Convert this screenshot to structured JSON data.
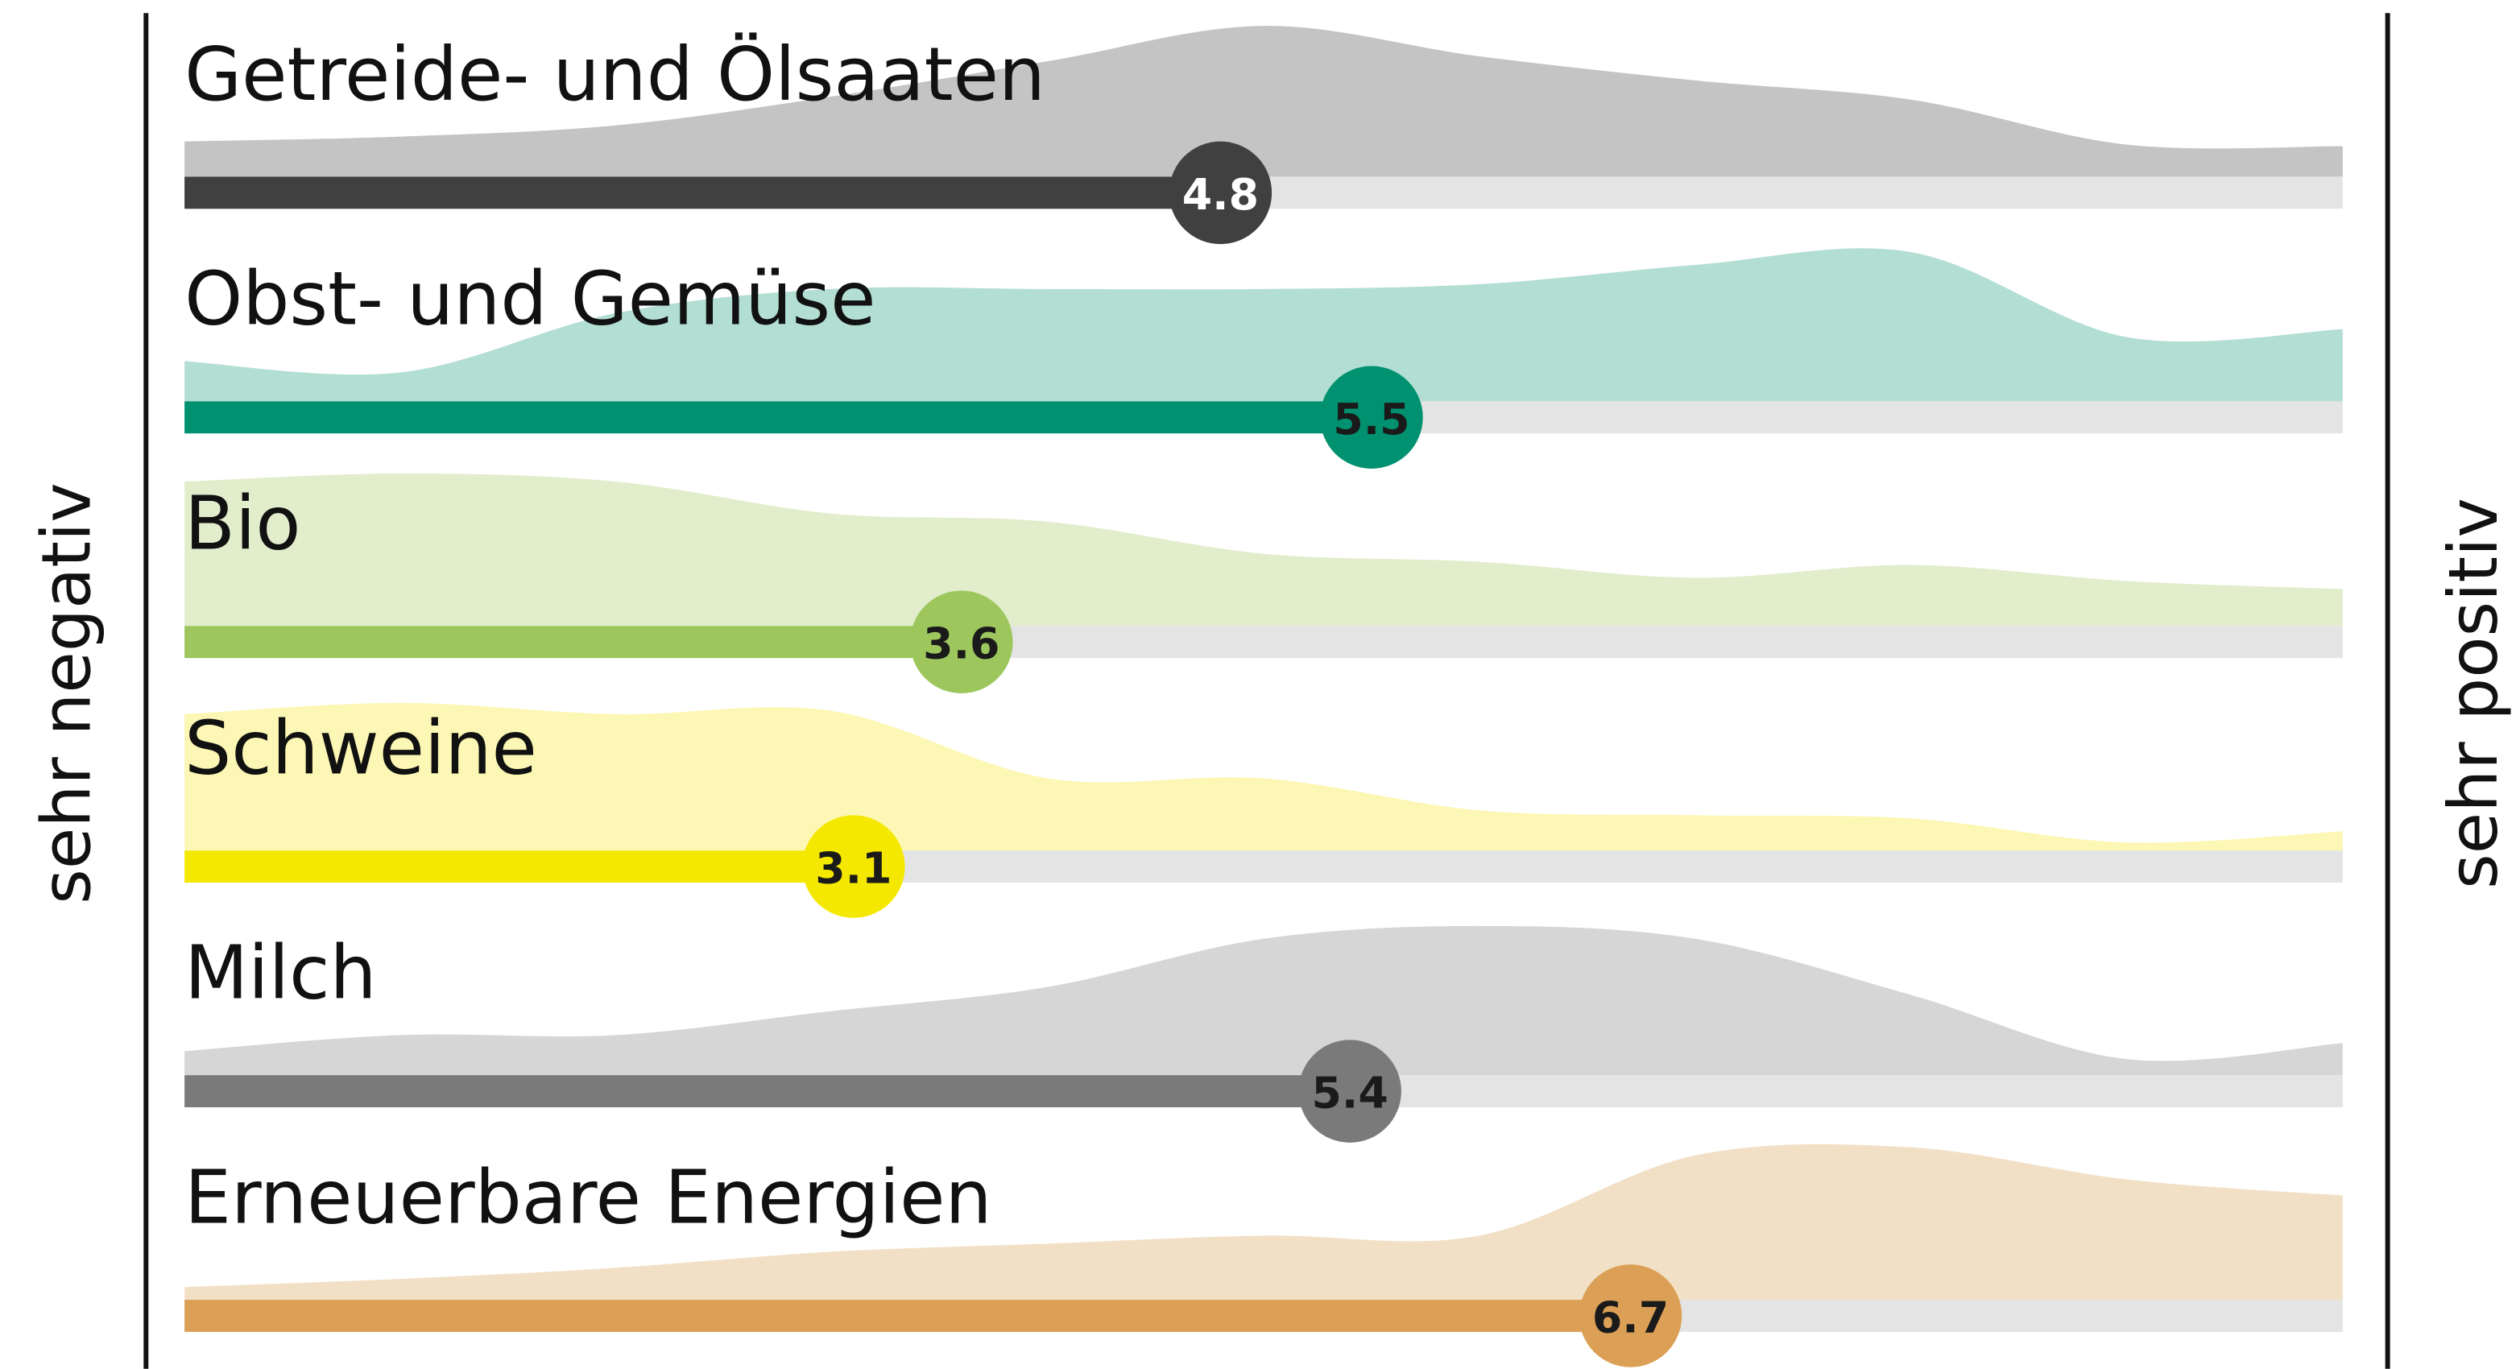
{
  "chart_data": {
    "type": "dot-bar",
    "xlim": [
      0,
      10
    ],
    "left_label": "sehr negativ",
    "right_label": "sehr positiv",
    "track_color": "#e4e4e4",
    "density_x": [
      0,
      1,
      2,
      3,
      4,
      5,
      6,
      7,
      8,
      9,
      10
    ],
    "series": [
      {
        "name": "Getreide- und Ölsaaten",
        "value": 4.8,
        "color": "#404040",
        "area_color": "#c4c4c4",
        "label_color": "#ffffff",
        "density": [
          0.22,
          0.25,
          0.32,
          0.5,
          0.72,
          0.94,
          0.75,
          0.6,
          0.48,
          0.2,
          0.19
        ]
      },
      {
        "name": "Obst- und Gemüse",
        "value": 5.5,
        "color": "#009270",
        "area_color": "#b3ded4",
        "label_color": "#1a1a1a",
        "density": [
          0.25,
          0.18,
          0.55,
          0.7,
          0.7,
          0.7,
          0.73,
          0.85,
          0.93,
          0.4,
          0.45
        ]
      },
      {
        "name": "Bio",
        "value": 3.6,
        "color": "#9dc75d",
        "area_color": "#e2edcc",
        "label_color": "#1a1a1a",
        "density": [
          0.9,
          0.95,
          0.9,
          0.7,
          0.65,
          0.45,
          0.4,
          0.3,
          0.38,
          0.28,
          0.23
        ]
      },
      {
        "name": "Schweine",
        "value": 3.1,
        "color": "#f5e800",
        "area_color": "#fcf7b4",
        "label_color": "#1a1a1a",
        "density": [
          0.85,
          0.92,
          0.85,
          0.87,
          0.45,
          0.45,
          0.25,
          0.22,
          0.2,
          0.05,
          0.12
        ]
      },
      {
        "name": "Milch",
        "value": 5.4,
        "color": "#7a7a7a",
        "area_color": "#d6d6d6",
        "label_color": "#1a1a1a",
        "density": [
          0.15,
          0.25,
          0.25,
          0.4,
          0.55,
          0.85,
          0.93,
          0.85,
          0.5,
          0.1,
          0.2
        ]
      },
      {
        "name": "Erneuerbare Energien",
        "value": 6.7,
        "color": "#dba055",
        "area_color": "#f2e0c6",
        "label_color": "#1a1a1a",
        "density": [
          0.08,
          0.13,
          0.2,
          0.3,
          0.35,
          0.4,
          0.4,
          0.9,
          0.95,
          0.75,
          0.65
        ]
      }
    ]
  }
}
